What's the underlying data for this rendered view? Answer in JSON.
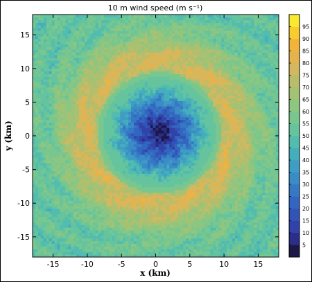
{
  "chart_data": {
    "type": "heatmap",
    "title": "10 m wind speed (m s⁻¹)",
    "xlabel": "x (km)",
    "ylabel": "y (km)",
    "xlim": [
      -18,
      18
    ],
    "ylim": [
      -18,
      18
    ],
    "x_ticks": [
      -15,
      -10,
      -5,
      0,
      5,
      10,
      15
    ],
    "y_ticks": [
      -15,
      -10,
      -5,
      0,
      5,
      10,
      15
    ],
    "colorbar": {
      "min": 0,
      "max": 100,
      "step": 5,
      "tick_labels": [
        5,
        10,
        15,
        20,
        25,
        30,
        35,
        40,
        45,
        50,
        55,
        60,
        65,
        70,
        75,
        80,
        85,
        90,
        95
      ],
      "colors": [
        "#1b1848",
        "#2b2d86",
        "#3142a8",
        "#3254b6",
        "#3366c0",
        "#3578c4",
        "#3b8cc6",
        "#3f9dc4",
        "#45aebc",
        "#52bcae",
        "#65c49e",
        "#79c78e",
        "#8dc680",
        "#a4c274",
        "#b9bd6a",
        "#d3b860",
        "#e5b34d",
        "#f1b43a",
        "#f8cc2e",
        "#faea2f"
      ]
    },
    "field": {
      "center": [
        0.5,
        0.5
      ],
      "eye_radius_km": 1.5,
      "radius_of_max_wind_km": 10,
      "min_speed": 3,
      "max_speed": 78,
      "outer_speed": 52
    }
  }
}
